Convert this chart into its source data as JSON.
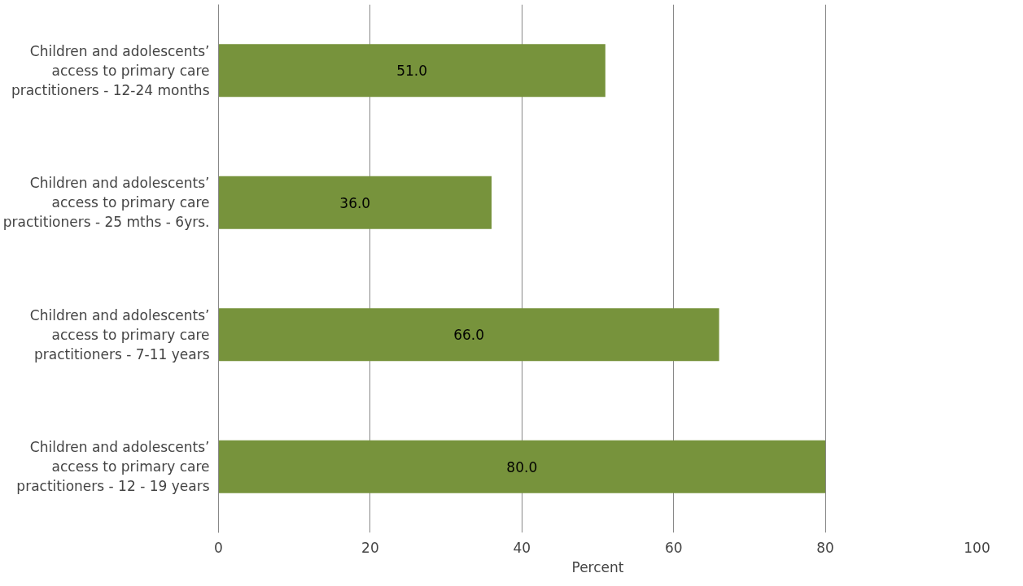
{
  "chart_data": {
    "type": "bar",
    "orientation": "horizontal",
    "categories": [
      "Children and adolescents’ access to primary care practitioners - 12-24 months",
      "Children and adolescents’ access to primary care practitioners - 25 mths - 6yrs.",
      "Children and adolescents’ access to primary care practitioners - 7-11 years",
      "Children and adolescents’ access to primary care practitioners - 12 - 19 years"
    ],
    "values": [
      51.0,
      36.0,
      66.0,
      80.0
    ],
    "value_labels": [
      "51.0",
      "36.0",
      "66.0",
      "80.0"
    ],
    "color": "#77933c",
    "xlim": [
      0,
      100
    ],
    "xticks": [
      0,
      20,
      40,
      60,
      80,
      100
    ],
    "xlabel": "Percent",
    "grid": "x"
  }
}
